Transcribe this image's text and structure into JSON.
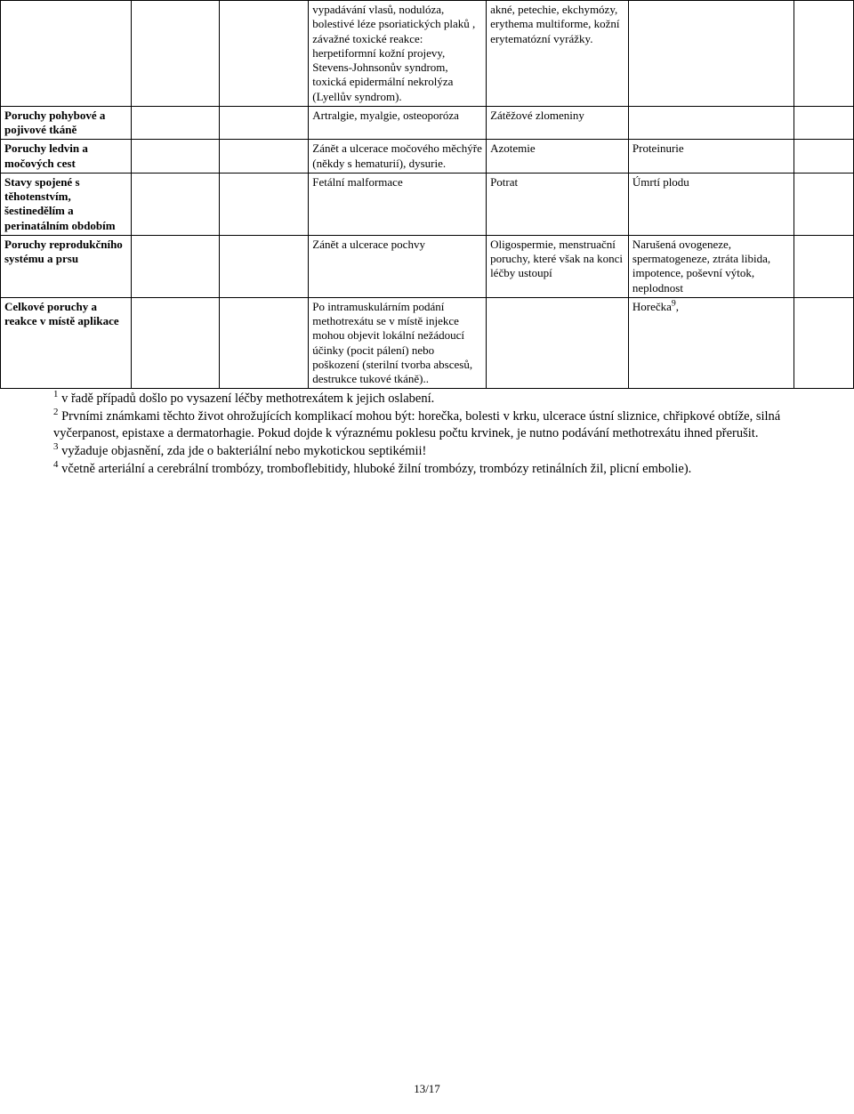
{
  "table": {
    "rows": [
      {
        "c1": "",
        "c1_bold": false,
        "c2": "",
        "c3": "",
        "c4": "vypadávání vlasů, nodulóza,  bolestivé léze psoriatických plaků , závažné toxické reakce: herpetiformní kožní projevy, Stevens-Johnsonův syndrom, toxická epidermální nekrolýza (Lyellův syndrom).",
        "c5": "akné, petechie, ekchymózy, erythema multiforme, kožní erytematózní vyrážky.",
        "c6": "",
        "c7": ""
      },
      {
        "c1": "Poruchy pohybové a pojivové tkáně",
        "c1_bold": true,
        "c2": "",
        "c3": "",
        "c4": "Artralgie, myalgie, osteoporóza",
        "c5": "Zátěžové zlomeniny",
        "c6": "",
        "c7": ""
      },
      {
        "c1": "Poruchy ledvin a močových cest",
        "c1_bold": true,
        "c2": "",
        "c3": "",
        "c4": "Zánět a ulcerace močového měchýře (někdy s hematurií), dysurie.",
        "c5": "Azotemie",
        "c6": "Proteinurie",
        "c7": ""
      },
      {
        "c1": "Stavy spojené s těhotenstvím, šestinedělím a perinatálním obdobím",
        "c1_bold": true,
        "c2": "",
        "c3": "",
        "c4": "Fetální malformace",
        "c5": "Potrat",
        "c6": "Úmrtí plodu",
        "c7": ""
      },
      {
        "c1": "Poruchy reprodukčního systému a prsu",
        "c1_bold": true,
        "c2": "",
        "c3": "",
        "c4": "Zánět a ulcerace pochvy",
        "c5": "Oligospermie, menstruační poruchy, které však na konci léčby ustoupí",
        "c6": "Narušená ovogeneze, spermatogeneze, ztráta libida, impotence, poševní výtok, neplodnost",
        "c7": ""
      },
      {
        "c1": "Celkové poruchy a reakce v místě aplikace",
        "c1_bold": true,
        "c2": "",
        "c3": "",
        "c4": "Po intramuskulárním podání methotrexátu se v místě injekce mohou objevit lokální nežádoucí účinky (pocit pálení) nebo poškození (sterilní tvorba abscesů, destrukce tukové tkáně)..",
        "c5": "",
        "c6_html": "Horečka<sup>9</sup>,",
        "c6": "",
        "c7": ""
      }
    ]
  },
  "notes": {
    "n1_html": "<sup>1</sup> v řadě případů došlo po vysazení léčby methotrexátem k jejich oslabení.",
    "n2_html": "<sup>2</sup> Prvními známkami těchto život ohrožujících komplikací mohou být: horečka, bolesti v krku, ulcerace ústní sliznice, chřipkové obtíže, silná vyčerpanost, epistaxe a dermatorhagie. Pokud dojde k výraznému poklesu počtu krvinek, je nutno podávání methotrexátu ihned přerušit.",
    "n3_html": "<sup>3</sup> vyžaduje objasnění, zda jde o bakteriální nebo mykotickou septikémii!",
    "n4_html": "<sup>4</sup> včetně arteriální a cerebrální trombózy, tromboflebitidy, hluboké žilní trombózy, trombózy retinálních žil, plicní embolie)."
  },
  "page_number": "13/17"
}
